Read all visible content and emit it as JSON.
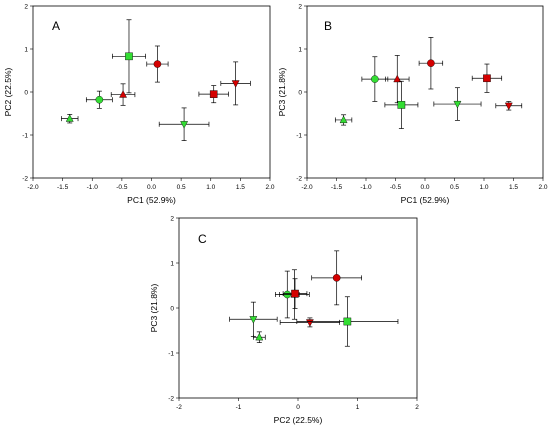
{
  "colors": {
    "red": "#d40000",
    "green": "#33dd33"
  },
  "chart_data": [
    {
      "type": "scatter",
      "panel": "A",
      "xlabel": "PC1 (52.9%)",
      "ylabel": "PC2 (22.5%)",
      "xlim": [
        -2.0,
        2.0
      ],
      "ylim": [
        -2,
        2
      ],
      "xticks": [
        "-2.0",
        "-1.5",
        "-1.0",
        "-0.5",
        "0.0",
        "0.5",
        "1.0",
        "1.5",
        "2.0"
      ],
      "yticks": [
        "-2",
        "-1",
        "0",
        "1",
        "2"
      ],
      "points": [
        {
          "shape": "triangle-up",
          "color": "green",
          "x": -1.38,
          "y": -0.62,
          "xerr": 0.14,
          "yerr": 0.1
        },
        {
          "shape": "circle",
          "color": "green",
          "x": -0.88,
          "y": -0.18,
          "xerr": 0.22,
          "yerr": 0.2
        },
        {
          "shape": "triangle-up",
          "color": "red",
          "x": -0.48,
          "y": -0.06,
          "xerr": 0.2,
          "yerr": 0.25
        },
        {
          "shape": "square",
          "color": "green",
          "x": -0.38,
          "y": 0.83,
          "xerr": 0.28,
          "yerr": 0.85
        },
        {
          "shape": "circle",
          "color": "red",
          "x": 0.1,
          "y": 0.65,
          "xerr": 0.18,
          "yerr": 0.42
        },
        {
          "shape": "triangle-down",
          "color": "green",
          "x": 0.55,
          "y": -0.75,
          "xerr": 0.42,
          "yerr": 0.38
        },
        {
          "shape": "square",
          "color": "red",
          "x": 1.05,
          "y": -0.05,
          "xerr": 0.25,
          "yerr": 0.2
        },
        {
          "shape": "triangle-down",
          "color": "red",
          "x": 1.42,
          "y": 0.2,
          "xerr": 0.25,
          "yerr": 0.5
        }
      ]
    },
    {
      "type": "scatter",
      "panel": "B",
      "xlabel": "PC1 (52.9%)",
      "ylabel": "PC3 (21.8%)",
      "xlim": [
        -2.0,
        2.0
      ],
      "ylim": [
        -2,
        2
      ],
      "xticks": [
        "-2.0",
        "-1.5",
        "-1.0",
        "-0.5",
        "0.0",
        "0.5",
        "1.0",
        "1.5",
        "2.0"
      ],
      "yticks": [
        "-2",
        "-1",
        "0",
        "1",
        "2"
      ],
      "points": [
        {
          "shape": "triangle-up",
          "color": "green",
          "x": -1.38,
          "y": -0.65,
          "xerr": 0.14,
          "yerr": 0.12
        },
        {
          "shape": "circle",
          "color": "green",
          "x": -0.85,
          "y": 0.3,
          "xerr": 0.22,
          "yerr": 0.52
        },
        {
          "shape": "triangle-up",
          "color": "red",
          "x": -0.47,
          "y": 0.3,
          "xerr": 0.2,
          "yerr": 0.55
        },
        {
          "shape": "square",
          "color": "green",
          "x": -0.4,
          "y": -0.3,
          "xerr": 0.28,
          "yerr": 0.55
        },
        {
          "shape": "circle",
          "color": "red",
          "x": 0.1,
          "y": 0.67,
          "xerr": 0.2,
          "yerr": 0.6
        },
        {
          "shape": "triangle-down",
          "color": "green",
          "x": 0.55,
          "y": -0.28,
          "xerr": 0.4,
          "yerr": 0.38
        },
        {
          "shape": "square",
          "color": "red",
          "x": 1.05,
          "y": 0.32,
          "xerr": 0.25,
          "yerr": 0.33
        },
        {
          "shape": "triangle-down",
          "color": "red",
          "x": 1.42,
          "y": -0.32,
          "xerr": 0.22,
          "yerr": 0.1
        }
      ]
    },
    {
      "type": "scatter",
      "panel": "C",
      "xlabel": "PC2 (22.5%)",
      "ylabel": "PC3 (21.8%)",
      "xlim": [
        -2,
        2
      ],
      "ylim": [
        -2,
        2
      ],
      "xticks": [
        "-2",
        "-1",
        "0",
        "1",
        "2"
      ],
      "yticks": [
        "-2",
        "-1",
        "0",
        "1",
        "2"
      ],
      "points": [
        {
          "shape": "triangle-up",
          "color": "green",
          "x": -0.65,
          "y": -0.65,
          "xerr": 0.1,
          "yerr": 0.12
        },
        {
          "shape": "triangle-down",
          "color": "green",
          "x": -0.75,
          "y": -0.25,
          "xerr": 0.4,
          "yerr": 0.38
        },
        {
          "shape": "circle",
          "color": "green",
          "x": -0.18,
          "y": 0.3,
          "xerr": 0.2,
          "yerr": 0.52
        },
        {
          "shape": "triangle-up",
          "color": "red",
          "x": -0.06,
          "y": 0.3,
          "xerr": 0.25,
          "yerr": 0.55
        },
        {
          "shape": "square",
          "color": "red",
          "x": -0.05,
          "y": 0.32,
          "xerr": 0.2,
          "yerr": 0.33
        },
        {
          "shape": "triangle-down",
          "color": "red",
          "x": 0.2,
          "y": -0.32,
          "xerr": 0.5,
          "yerr": 0.1
        },
        {
          "shape": "circle",
          "color": "red",
          "x": 0.65,
          "y": 0.67,
          "xerr": 0.42,
          "yerr": 0.6
        },
        {
          "shape": "square",
          "color": "green",
          "x": 0.83,
          "y": -0.3,
          "xerr": 0.85,
          "yerr": 0.55
        }
      ]
    }
  ]
}
